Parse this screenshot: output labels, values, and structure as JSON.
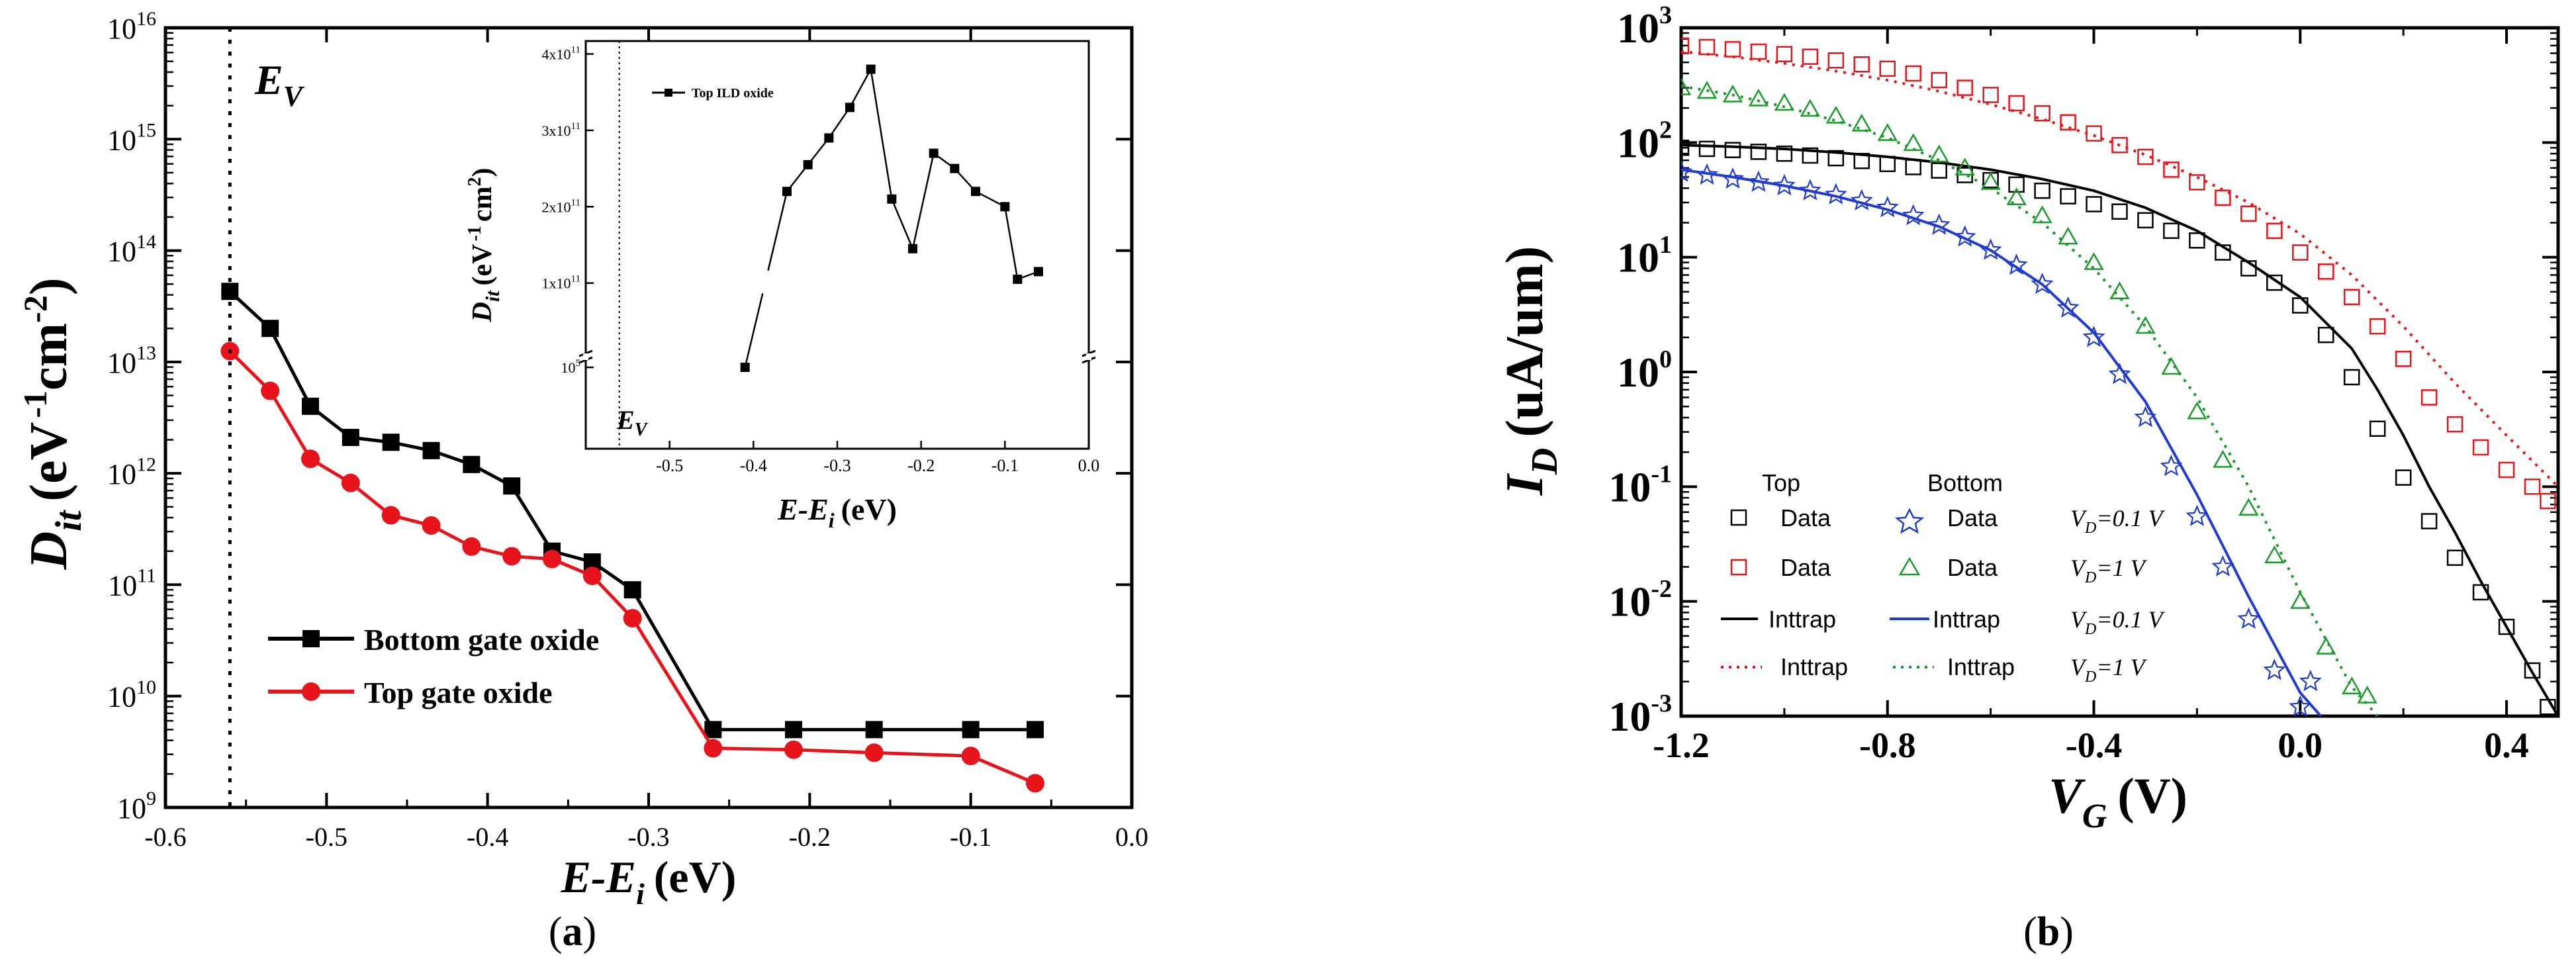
{
  "panels": {
    "a_label": "a",
    "b_label": "b"
  },
  "chart_data": [
    {
      "id": "a",
      "type": "line",
      "xlabel": "E-E",
      "xlabel_sub": "i",
      "xlabel_unit": "(eV)",
      "ylabel": "D",
      "ylabel_sub": "it",
      "ylabel_unit_a": "(eV",
      "ylabel_unit_exp1": "-1",
      "ylabel_unit_b": "cm",
      "ylabel_unit_exp2": "-2",
      "ylabel_unit_c": ")",
      "xlim": [
        -0.6,
        0.0
      ],
      "ylim_log10": [
        9,
        16
      ],
      "yscale": "log",
      "xticks": [
        -0.6,
        -0.5,
        -0.4,
        -0.3,
        -0.2,
        -0.1,
        0.0
      ],
      "xtick_labels": [
        "-0.6",
        "-0.5",
        "-0.4",
        "-0.3",
        "-0.2",
        "-0.1",
        "0.0"
      ],
      "yticks_exp": [
        9,
        10,
        11,
        12,
        13,
        14,
        15,
        16
      ],
      "ytick_base": "10",
      "ytick_exps": [
        "9",
        "10",
        "11",
        "12",
        "13",
        "14",
        "15",
        "16"
      ],
      "annotation": {
        "text": "E",
        "sub": "V",
        "x": -0.56
      },
      "series": [
        {
          "name": "Bottom gate oxide",
          "color": "#000000",
          "marker": "square",
          "x": [
            -0.56,
            -0.535,
            -0.51,
            -0.485,
            -0.46,
            -0.435,
            -0.41,
            -0.385,
            -0.36,
            -0.335,
            -0.31,
            -0.26,
            -0.21,
            -0.16,
            -0.1,
            -0.06
          ],
          "y": [
            43000000000000.0,
            20000000000000.0,
            4000000000000.0,
            2100000000000.0,
            1900000000000.0,
            1600000000000.0,
            1200000000000.0,
            770000000000.0,
            200000000000.0,
            160000000000.0,
            90000000000.0,
            5000000000.0,
            5000000000.0,
            5000000000.0,
            5000000000.0,
            5000000000.0
          ]
        },
        {
          "name": "Top gate oxide",
          "color": "#e8141b",
          "marker": "circle",
          "x": [
            -0.56,
            -0.535,
            -0.51,
            -0.485,
            -0.46,
            -0.435,
            -0.41,
            -0.385,
            -0.36,
            -0.335,
            -0.31,
            -0.26,
            -0.21,
            -0.16,
            -0.1,
            -0.06
          ],
          "y": [
            12500000000000.0,
            5500000000000.0,
            1350000000000.0,
            820000000000.0,
            420000000000.0,
            340000000000.0,
            220000000000.0,
            180000000000.0,
            170000000000.0,
            120000000000.0,
            50000000000.0,
            3400000000.0,
            3300000000.0,
            3100000000.0,
            2900000000.0,
            1650000000.0
          ]
        }
      ],
      "inset": {
        "type": "line",
        "xlabel": "E-E",
        "xlabel_sub": "i",
        "xlabel_unit": "(eV)",
        "ylabel": "D",
        "ylabel_sub": "it",
        "ylabel_unit": "(eV",
        "ylabel_unit_exp": "-1",
        "ylabel_unit_b": "cm",
        "ylabel_unit_exp2": "2",
        "ylabel_unit_c": ")",
        "xlim": [
          -0.6,
          0.0
        ],
        "xtick_labels": [
          "-0.5",
          "-0.4",
          "-0.3",
          "-0.2",
          "-0.1",
          "0.0"
        ],
        "xticks": [
          -0.5,
          -0.4,
          -0.3,
          -0.2,
          -0.1,
          0.0
        ],
        "ytick_labels": [
          {
            "value": 100000,
            "base": "10",
            "exp": "5"
          },
          {
            "value": 100000000000.0,
            "mant": "1x10",
            "exp": "11"
          },
          {
            "value": 200000000000.0,
            "mant": "2x10",
            "exp": "11"
          },
          {
            "value": 300000000000.0,
            "mant": "3x10",
            "exp": "11"
          },
          {
            "value": 400000000000.0,
            "mant": "4x10",
            "exp": "11"
          }
        ],
        "annotation": {
          "text": "E",
          "sub": "V",
          "x": -0.56
        },
        "series": [
          {
            "name": "Top ILD oxide",
            "color": "#000000",
            "marker": "square",
            "x": [
              -0.41,
              -0.36,
              -0.335,
              -0.31,
              -0.285,
              -0.26,
              -0.235,
              -0.21,
              -0.185,
              -0.16,
              -0.135,
              -0.1,
              -0.085,
              -0.06
            ],
            "y": [
              100000,
              220000000000.0,
              255000000000.0,
              290000000000.0,
              330000000000.0,
              380000000000.0,
              210000000000.0,
              145000000000.0,
              270000000000.0,
              250000000000.0,
              220000000000.0,
              200000000000.0,
              105000000000.0,
              115000000000.0
            ]
          }
        ]
      }
    },
    {
      "id": "b",
      "type": "scatter+line",
      "xlabel": "V",
      "xlabel_sub": "G",
      "xlabel_unit": "(V)",
      "ylabel": "I",
      "ylabel_sub": "D",
      "ylabel_unit": "(uA/um)",
      "xlim": [
        -1.2,
        0.5
      ],
      "ylim_log10": [
        -3,
        3
      ],
      "yscale": "log",
      "xticks": [
        -1.2,
        -0.8,
        -0.4,
        0.0,
        0.4
      ],
      "xtick_labels": [
        "-1.2",
        "-0.8",
        "-0.4",
        "0.0",
        "0.4"
      ],
      "yticks_exp": [
        -3,
        -2,
        -1,
        0,
        1,
        2,
        3
      ],
      "ytick_base": "10",
      "ytick_exps": [
        "-3",
        "-2",
        "-1",
        "0",
        "1",
        "2",
        "3"
      ],
      "legend": {
        "col_top": "Top",
        "col_bottom": "Bottom",
        "rows": [
          {
            "top_label": "Data",
            "bottom_label": "Data",
            "vd": "V",
            "vd_sub": "D",
            "vd_val": "=0.1 V"
          },
          {
            "top_label": "Data",
            "bottom_label": "Data",
            "vd": "V",
            "vd_sub": "D",
            "vd_val": "=1 V"
          },
          {
            "top_label": "Inttrap",
            "bottom_label": "Inttrap",
            "vd": "V",
            "vd_sub": "D",
            "vd_val": "=0.1 V"
          },
          {
            "top_label": "Inttrap",
            "bottom_label": "Inttrap",
            "vd": "V",
            "vd_sub": "D",
            "vd_val": "=1 V"
          }
        ]
      },
      "series": [
        {
          "name": "Top Data VD=0.1 V",
          "kind": "points",
          "marker": "square",
          "color": "#000000",
          "x": [
            -1.2,
            -1.15,
            -1.1,
            -1.05,
            -1.0,
            -0.95,
            -0.9,
            -0.85,
            -0.8,
            -0.75,
            -0.7,
            -0.65,
            -0.6,
            -0.55,
            -0.5,
            -0.45,
            -0.4,
            -0.35,
            -0.3,
            -0.25,
            -0.2,
            -0.15,
            -0.1,
            -0.05,
            0.0,
            0.05,
            0.1,
            0.15,
            0.2,
            0.25,
            0.3,
            0.35,
            0.4,
            0.45,
            0.48
          ],
          "y": [
            90,
            88,
            86,
            83,
            80,
            77,
            73,
            69,
            65,
            61,
            57,
            52,
            47,
            43,
            38,
            34,
            29,
            25,
            21,
            17,
            14,
            11,
            8,
            6,
            3.8,
            2.1,
            0.9,
            0.32,
            0.12,
            0.05,
            0.024,
            0.012,
            0.006,
            0.0025,
            0.0012
          ]
        },
        {
          "name": "Top Data VD=1 V",
          "kind": "points",
          "marker": "square",
          "color": "#e8141b",
          "x": [
            -1.2,
            -1.15,
            -1.1,
            -1.05,
            -1.0,
            -0.95,
            -0.9,
            -0.85,
            -0.8,
            -0.75,
            -0.7,
            -0.65,
            -0.6,
            -0.55,
            -0.5,
            -0.45,
            -0.4,
            -0.35,
            -0.3,
            -0.25,
            -0.2,
            -0.15,
            -0.1,
            -0.05,
            0.0,
            0.05,
            0.1,
            0.15,
            0.2,
            0.25,
            0.3,
            0.35,
            0.4,
            0.45,
            0.48
          ],
          "y": [
            700,
            680,
            650,
            620,
            590,
            560,
            520,
            480,
            440,
            400,
            350,
            300,
            260,
            220,
            180,
            150,
            120,
            95,
            75,
            58,
            45,
            33,
            24,
            17,
            11,
            7.5,
            4.5,
            2.5,
            1.3,
            0.6,
            0.35,
            0.22,
            0.14,
            0.1,
            0.075
          ]
        },
        {
          "name": "Bottom Data VD=0.1 V",
          "kind": "points",
          "marker": "star",
          "color": "#1f3bd1",
          "x": [
            -1.2,
            -1.15,
            -1.1,
            -1.05,
            -1.0,
            -0.95,
            -0.9,
            -0.85,
            -0.8,
            -0.75,
            -0.7,
            -0.65,
            -0.6,
            -0.55,
            -0.5,
            -0.45,
            -0.4,
            -0.35,
            -0.3,
            -0.25,
            -0.2,
            -0.15,
            -0.1,
            -0.05,
            0.0,
            0.02
          ],
          "y": [
            55,
            52,
            48,
            45,
            42,
            38,
            35,
            31,
            27,
            23,
            19,
            15,
            11.5,
            8.5,
            5.8,
            3.6,
            2.0,
            0.95,
            0.4,
            0.15,
            0.055,
            0.02,
            0.007,
            0.0025,
            0.0012,
            0.002
          ]
        },
        {
          "name": "Bottom Data VD=1 V",
          "kind": "points",
          "marker": "triangle",
          "color": "#1a9a2a",
          "x": [
            -1.2,
            -1.15,
            -1.1,
            -1.05,
            -1.0,
            -0.95,
            -0.9,
            -0.85,
            -0.8,
            -0.75,
            -0.7,
            -0.65,
            -0.6,
            -0.55,
            -0.5,
            -0.45,
            -0.4,
            -0.35,
            -0.3,
            -0.25,
            -0.2,
            -0.15,
            -0.1,
            -0.05,
            0.0,
            0.05,
            0.1,
            0.13
          ],
          "y": [
            300,
            280,
            260,
            240,
            220,
            195,
            170,
            145,
            120,
            98,
            78,
            60,
            45,
            33,
            23,
            15,
            9,
            5,
            2.5,
            1.1,
            0.45,
            0.17,
            0.065,
            0.025,
            0.01,
            0.004,
            0.0018,
            0.0015
          ]
        },
        {
          "name": "Top Inttrap VD=0.1 V",
          "kind": "line",
          "style": "solid",
          "color": "#000000",
          "x": [
            -1.2,
            -1.1,
            -1.0,
            -0.9,
            -0.8,
            -0.7,
            -0.6,
            -0.5,
            -0.4,
            -0.3,
            -0.2,
            -0.1,
            0.0,
            0.1,
            0.15,
            0.2,
            0.25,
            0.3,
            0.35,
            0.4,
            0.45,
            0.5
          ],
          "y": [
            95,
            92,
            88,
            82,
            75,
            67,
            58,
            48,
            38,
            27,
            17,
            9,
            4.5,
            1.6,
            0.7,
            0.28,
            0.1,
            0.04,
            0.015,
            0.006,
            0.0024,
            0.001
          ]
        },
        {
          "name": "Top Inttrap VD=1 V",
          "kind": "line",
          "style": "dotted",
          "color": "#e8141b",
          "x": [
            -1.2,
            -1.1,
            -1.0,
            -0.9,
            -0.8,
            -0.7,
            -0.6,
            -0.5,
            -0.4,
            -0.3,
            -0.2,
            -0.1,
            0.0,
            0.1,
            0.2,
            0.3,
            0.4,
            0.5
          ],
          "y": [
            620,
            560,
            490,
            420,
            350,
            280,
            215,
            160,
            115,
            78,
            50,
            30,
            16,
            7,
            2.5,
            0.8,
            0.28,
            0.1
          ]
        },
        {
          "name": "Bottom Inttrap VD=0.1 V",
          "kind": "line",
          "style": "solid",
          "color": "#1f3bd1",
          "x": [
            -1.2,
            -1.1,
            -1.0,
            -0.9,
            -0.8,
            -0.7,
            -0.6,
            -0.5,
            -0.4,
            -0.3,
            -0.2,
            -0.1,
            0.0,
            0.04
          ],
          "y": [
            58,
            50,
            42,
            34,
            26,
            18.5,
            11.5,
            5.8,
            2.2,
            0.55,
            0.085,
            0.011,
            0.0016,
            0.001
          ]
        },
        {
          "name": "Bottom Inttrap VD=1 V",
          "kind": "line",
          "style": "dotted",
          "color": "#1a9a2a",
          "x": [
            -1.2,
            -1.1,
            -1.0,
            -0.9,
            -0.8,
            -0.7,
            -0.6,
            -0.5,
            -0.4,
            -0.3,
            -0.2,
            -0.1,
            0.0,
            0.1,
            0.15
          ],
          "y": [
            310,
            260,
            205,
            155,
            110,
            70,
            40,
            20,
            8,
            2.5,
            0.6,
            0.1,
            0.012,
            0.0018,
            0.001
          ]
        }
      ]
    }
  ]
}
